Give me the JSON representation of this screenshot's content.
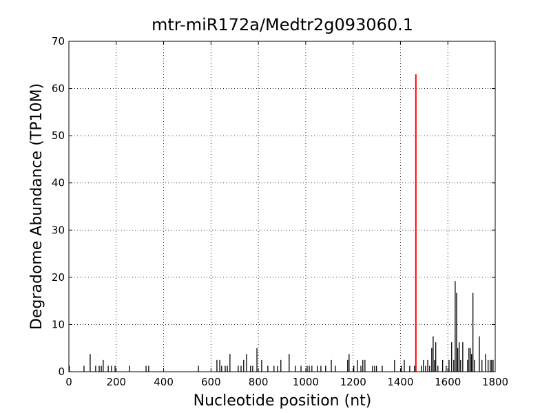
{
  "chart_data": {
    "type": "bar",
    "title": "mtr-miR172a/Medtr2g093060.1",
    "x_label": "Nucleotide position (nt)",
    "y_label": "Degradome Abundance (TP10M)",
    "xlim": [
      0,
      1800
    ],
    "ylim": [
      0,
      70
    ],
    "xticks": [
      0,
      200,
      400,
      600,
      800,
      1000,
      1200,
      1400,
      1600,
      1800
    ],
    "yticks": [
      0,
      10,
      20,
      30,
      40,
      50,
      60,
      70
    ],
    "grid": true,
    "color": "#000000",
    "x": [
      2,
      64,
      90,
      113,
      128,
      137,
      145,
      166,
      180,
      195,
      256,
      326,
      337,
      547,
      625,
      637,
      645,
      660,
      669,
      680,
      715,
      727,
      738,
      750,
      767,
      776,
      794,
      814,
      840,
      866,
      881,
      895,
      930,
      956,
      980,
      1006,
      1015,
      1026,
      1049,
      1064,
      1084,
      1108,
      1125,
      1177,
      1183,
      1203,
      1218,
      1233,
      1241,
      1250,
      1282,
      1291,
      1299,
      1323,
      1375,
      1404,
      1416,
      1439,
      1459,
      1488,
      1497,
      1506,
      1515,
      1523,
      1532,
      1538,
      1544,
      1549,
      1558,
      1578,
      1593,
      1605,
      1616,
      1625,
      1631,
      1637,
      1642,
      1648,
      1654,
      1663,
      1683,
      1689,
      1695,
      1700,
      1706,
      1712,
      1733,
      1744,
      1759,
      1770,
      1779,
      1785,
      1791
    ],
    "values": [
      1.25,
      1.25,
      3.75,
      1.25,
      1.25,
      1.25,
      2.5,
      1.25,
      1.25,
      1.25,
      1.25,
      1.25,
      1.25,
      1.25,
      2.5,
      2.5,
      1.25,
      1.25,
      1.25,
      3.75,
      1.25,
      1.25,
      2.5,
      3.75,
      1.25,
      1.25,
      5,
      2.5,
      1.25,
      1.25,
      1.25,
      2.5,
      3.75,
      1.25,
      1.25,
      1.25,
      1.25,
      1.25,
      1.25,
      1.25,
      1.25,
      2.5,
      1.25,
      2.5,
      3.75,
      1.25,
      2.5,
      1.25,
      2.5,
      2.5,
      1.25,
      1.25,
      1.25,
      1.25,
      2.5,
      1.25,
      2.5,
      1.25,
      1.25,
      1.25,
      2.5,
      1.25,
      2.5,
      1.25,
      5,
      7.5,
      2.5,
      6.25,
      1.25,
      2.5,
      1.25,
      2.5,
      6.25,
      2.5,
      19.2,
      16.7,
      5,
      6.25,
      2.5,
      6.25,
      2.5,
      5,
      5,
      3.75,
      16.7,
      2.5,
      7.5,
      2.5,
      3.75,
      2.5,
      2.5,
      2.5,
      2.5
    ],
    "highlight": {
      "x": 1465,
      "value": 63,
      "color": "#ff0000"
    }
  }
}
